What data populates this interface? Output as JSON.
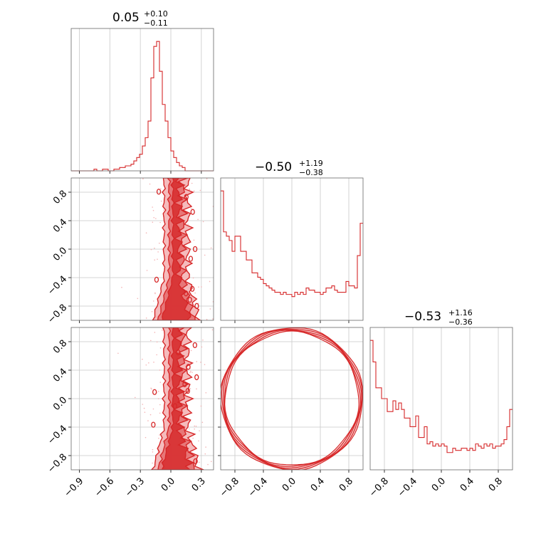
{
  "colors": {
    "accent": "#d62728",
    "fill_light": "#f4b4b5",
    "fill_dark": "#e46b6c",
    "grid": "#c8c8c8",
    "spine": "#666666"
  },
  "titles": [
    {
      "median": "0.05",
      "plus": "+0.10",
      "minus": "−0.11"
    },
    {
      "median": "−0.50",
      "plus": "+1.19",
      "minus": "−0.38"
    },
    {
      "median": "−0.53",
      "plus": "+1.16",
      "minus": "−0.36"
    }
  ],
  "chart_data": {
    "type": "corner",
    "parameters": 3,
    "ranges": [
      [
        -0.98,
        0.42
      ],
      [
        -1.0,
        1.0
      ],
      [
        -1.0,
        1.0
      ]
    ],
    "ticks": [
      {
        "values": [
          -0.9,
          -0.6,
          -0.3,
          0.0,
          0.3
        ],
        "labels": [
          "−0.9",
          "−0.6",
          "−0.3",
          "0.0",
          "0.3"
        ]
      },
      {
        "values": [
          -0.8,
          -0.4,
          0.0,
          0.4,
          0.8
        ],
        "labels": [
          "−0.8",
          "−0.4",
          "0.0",
          "0.4",
          "0.8"
        ]
      },
      {
        "values": [
          -0.8,
          -0.4,
          0.0,
          0.4,
          0.8
        ],
        "labels": [
          "−0.8",
          "−0.4",
          "0.0",
          "0.4",
          "0.8"
        ]
      }
    ],
    "histograms": [
      {
        "edges_start": -0.98,
        "bin_width": 0.028,
        "counts": [
          0,
          0,
          0,
          0,
          0,
          0,
          0,
          0,
          1,
          0,
          0,
          1,
          1,
          0,
          0,
          1,
          1,
          2,
          2,
          3,
          3,
          4,
          6,
          8,
          10,
          15,
          20,
          30,
          56,
          75,
          78,
          60,
          40,
          30,
          20,
          12,
          8,
          5,
          3,
          2,
          0,
          0,
          0,
          0,
          0,
          0,
          0,
          0,
          0,
          0
        ]
      },
      {
        "edges_start": -1.0,
        "bin_width": 0.04,
        "counts": [
          60,
          41,
          39,
          37,
          32,
          39,
          39,
          32,
          32,
          28,
          28,
          22,
          22,
          20,
          19,
          17,
          16,
          15,
          14,
          13,
          13,
          12,
          13,
          12,
          12,
          11,
          13,
          12,
          13,
          12,
          15,
          14,
          14,
          13,
          13,
          12,
          13,
          15,
          15,
          16,
          14,
          13,
          13,
          13,
          18,
          16,
          16,
          15,
          30,
          45
        ]
      },
      {
        "edges_start": -1.0,
        "bin_width": 0.04,
        "counts": [
          60,
          50,
          38,
          38,
          33,
          33,
          27,
          27,
          32,
          28,
          31,
          28,
          24,
          24,
          20,
          20,
          25,
          15,
          15,
          20,
          12,
          13,
          11,
          12,
          11,
          12,
          11,
          8,
          8,
          10,
          9,
          9,
          10,
          10,
          9,
          10,
          9,
          12,
          11,
          10,
          12,
          11,
          12,
          10,
          11,
          11,
          12,
          14,
          20,
          28
        ]
      }
    ],
    "contours": [
      {
        "x_param": 0,
        "y_param": 1,
        "x_range": [
          -0.98,
          0.42
        ],
        "y_range": [
          -1.0,
          1.0
        ],
        "shape": "vertical-band",
        "center_x": 0.05,
        "width": 0.18
      },
      {
        "x_param": 0,
        "y_param": 2,
        "x_range": [
          -0.98,
          0.42
        ],
        "y_range": [
          -1.0,
          1.0
        ],
        "shape": "vertical-band",
        "center_x": 0.05,
        "width": 0.18
      },
      {
        "x_param": 1,
        "y_param": 2,
        "x_range": [
          -1.0,
          1.0
        ],
        "y_range": [
          -1.0,
          1.0
        ],
        "shape": "ring",
        "radius": 0.97
      }
    ],
    "grid": true
  }
}
